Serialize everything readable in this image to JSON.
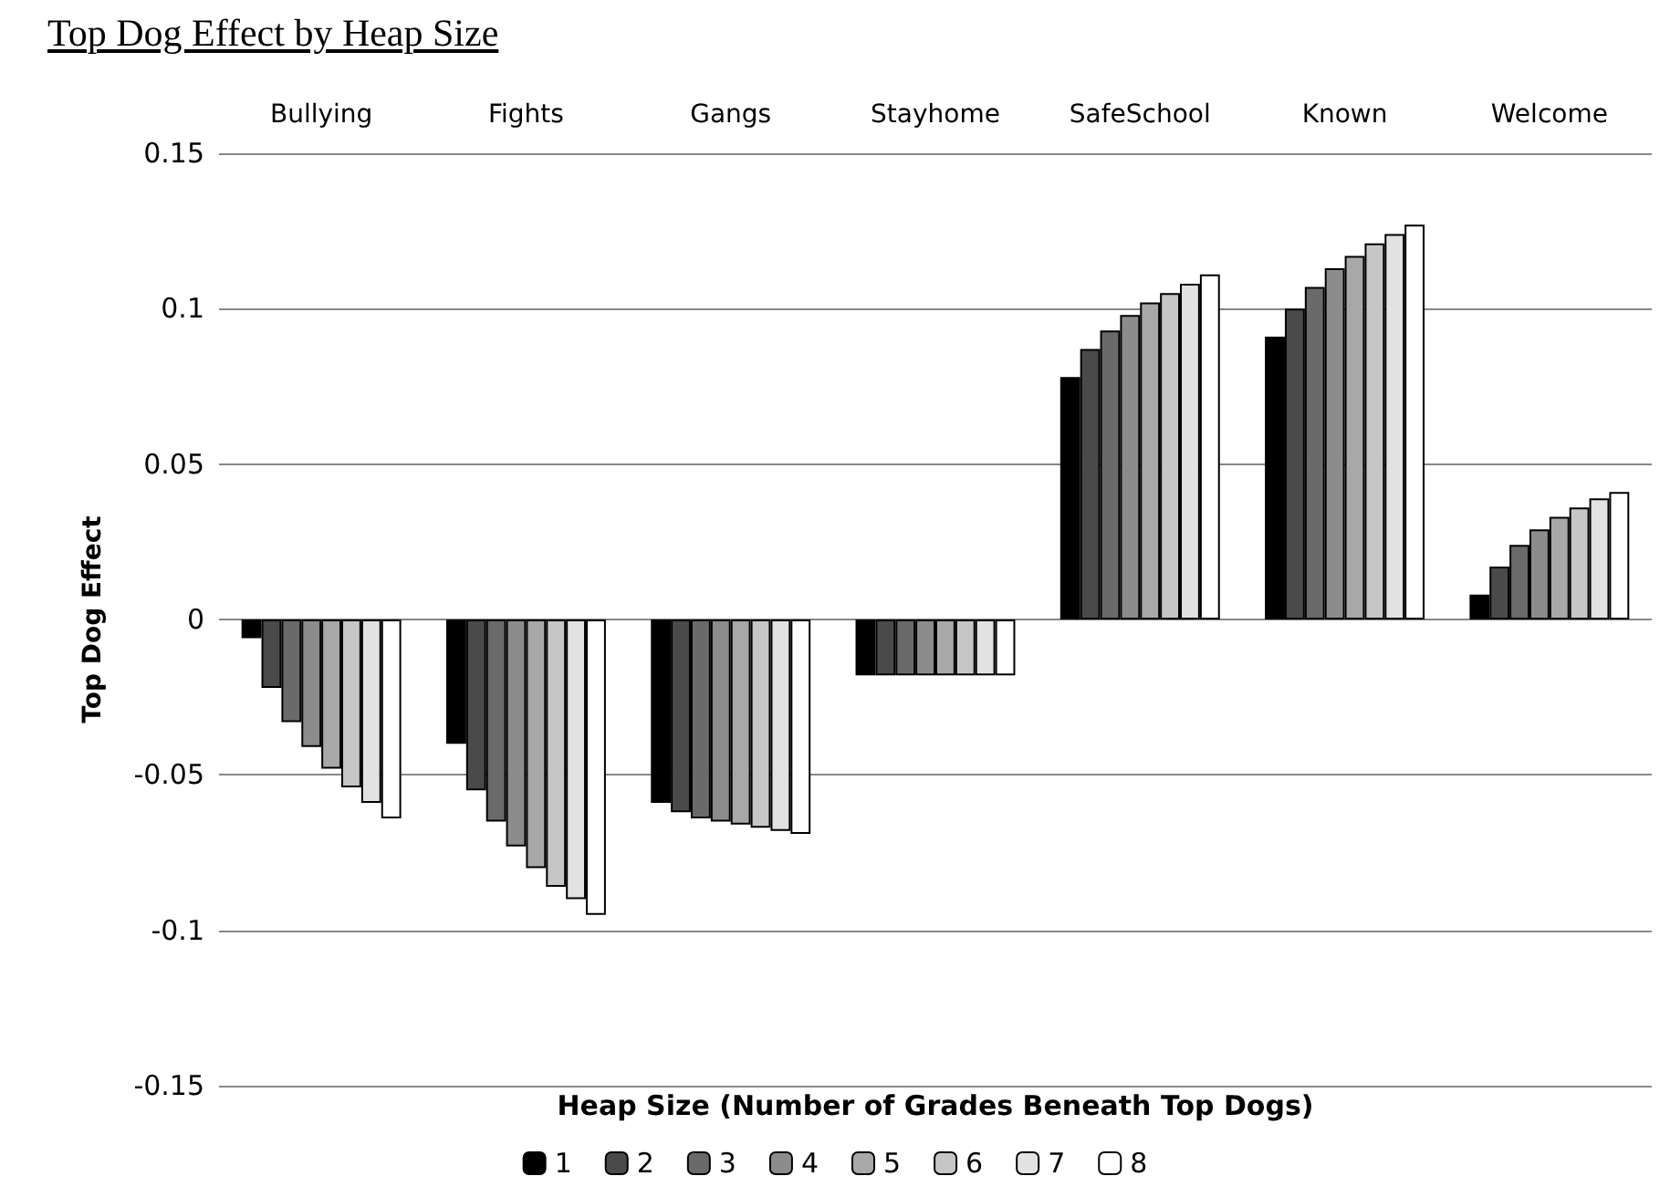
{
  "chart_data": {
    "type": "bar",
    "title": "Top Dog Effect by Heap Size",
    "xlabel": "Heap Size (Number of Grades Beneath Top Dogs)",
    "ylabel": "Top Dog Effect",
    "categories": [
      "Bullying",
      "Fights",
      "Gangs",
      "Stayhome",
      "SafeSchool",
      "Known",
      "Welcome"
    ],
    "ylim": [
      -0.15,
      0.15
    ],
    "yticks": [
      -0.15,
      -0.1,
      -0.05,
      0,
      0.05,
      0.1,
      0.15
    ],
    "grid": "y",
    "legend": "bottom",
    "series": [
      {
        "name": "1",
        "color": "#000000",
        "values": [
          -0.006,
          -0.04,
          -0.059,
          -0.018,
          0.078,
          0.091,
          0.008
        ]
      },
      {
        "name": "2",
        "color": "#4a4a4a",
        "values": [
          -0.022,
          -0.055,
          -0.062,
          -0.018,
          0.087,
          0.1,
          0.017
        ]
      },
      {
        "name": "3",
        "color": "#6a6a6a",
        "values": [
          -0.033,
          -0.065,
          -0.064,
          -0.018,
          0.093,
          0.107,
          0.024
        ]
      },
      {
        "name": "4",
        "color": "#8c8c8c",
        "values": [
          -0.041,
          -0.073,
          -0.065,
          -0.018,
          0.098,
          0.113,
          0.029
        ]
      },
      {
        "name": "5",
        "color": "#a8a8a8",
        "values": [
          -0.048,
          -0.08,
          -0.066,
          -0.018,
          0.102,
          0.117,
          0.033
        ]
      },
      {
        "name": "6",
        "color": "#c6c6c6",
        "values": [
          -0.054,
          -0.086,
          -0.067,
          -0.018,
          0.105,
          0.121,
          0.036
        ]
      },
      {
        "name": "7",
        "color": "#e2e2e2",
        "values": [
          -0.059,
          -0.09,
          -0.068,
          -0.018,
          0.108,
          0.124,
          0.039
        ]
      },
      {
        "name": "8",
        "color": "#ffffff",
        "values": [
          -0.064,
          -0.095,
          -0.069,
          -0.018,
          0.111,
          0.127,
          0.041
        ]
      }
    ]
  }
}
